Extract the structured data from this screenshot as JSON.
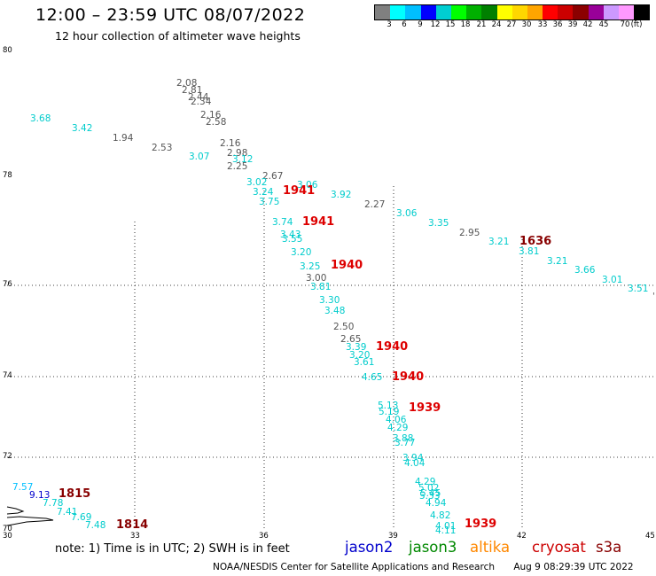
{
  "header": {
    "title": "12:00 – 23:59 UTC 08/07/2022",
    "subtitle": "12 hour collection of altimeter wave heights"
  },
  "legend": {
    "colors": [
      "#808080",
      "#00ffff",
      "#00bfff",
      "#0000ff",
      "#00ced1",
      "#00ff00",
      "#00b000",
      "#008000",
      "#ffff00",
      "#ffd700",
      "#ffa500",
      "#ff0000",
      "#cc0000",
      "#8b0000",
      "#990099",
      "#cc99ff",
      "#ff99ff",
      "#000000"
    ],
    "ticks": [
      "3",
      "6",
      "9",
      "12",
      "15",
      "18",
      "21",
      "24",
      "27",
      "30",
      "33",
      "36",
      "39",
      "42",
      "45",
      "70"
    ],
    "unit": "(ft)"
  },
  "axes": {
    "lat_labels": [
      "80",
      "78",
      "76",
      "74",
      "72",
      "70"
    ],
    "lon_labels": [
      "30",
      "33",
      "36",
      "39",
      "42",
      "45"
    ]
  },
  "map": {
    "waves": [
      {
        "text": "2.08",
        "color": "#555555"
      },
      {
        "text": "2.81",
        "color": "#555555"
      },
      {
        "text": "2.44",
        "color": "#555555"
      },
      {
        "text": "2.34",
        "color": "#555555"
      },
      {
        "text": "2.16",
        "color": "#555555"
      },
      {
        "text": "2.58",
        "color": "#555555"
      },
      {
        "text": "3.68",
        "color": "#00cccc"
      },
      {
        "text": "3.42",
        "color": "#00cccc"
      },
      {
        "text": "1.94",
        "color": "#555555"
      },
      {
        "text": "2.53",
        "color": "#555555"
      },
      {
        "text": "2.16",
        "color": "#555555"
      },
      {
        "text": "2.98",
        "color": "#555555"
      },
      {
        "text": "3.07",
        "color": "#00cccc"
      },
      {
        "text": "3.12",
        "color": "#00cccc"
      },
      {
        "text": "2.25",
        "color": "#555555"
      },
      {
        "text": "2.67",
        "color": "#555555"
      },
      {
        "text": "3.02",
        "color": "#00cccc"
      },
      {
        "text": "3.06",
        "color": "#00cccc"
      },
      {
        "text": "3.24",
        "color": "#00cccc"
      },
      {
        "text": "3.92",
        "color": "#00cccc"
      },
      {
        "text": "3.75",
        "color": "#00cccc"
      },
      {
        "text": "2.27",
        "color": "#555555"
      },
      {
        "text": "3.06",
        "color": "#00cccc"
      },
      {
        "text": "3.74",
        "color": "#00cccc"
      },
      {
        "text": "3.35",
        "color": "#00cccc"
      },
      {
        "text": "3.43",
        "color": "#00cccc"
      },
      {
        "text": "3.55",
        "color": "#00cccc"
      },
      {
        "text": "2.95",
        "color": "#555555"
      },
      {
        "text": "3.21",
        "color": "#00cccc"
      },
      {
        "text": "3.81",
        "color": "#00cccc"
      },
      {
        "text": "3.20",
        "color": "#00cccc"
      },
      {
        "text": "3.21",
        "color": "#00cccc"
      },
      {
        "text": "3.66",
        "color": "#00cccc"
      },
      {
        "text": "3.25",
        "color": "#00cccc"
      },
      {
        "text": "3.01",
        "color": "#00cccc"
      },
      {
        "text": "3.00",
        "color": "#555555"
      },
      {
        "text": "3.51",
        "color": "#00cccc"
      },
      {
        "text": "3.81",
        "color": "#00cccc"
      },
      {
        "text": "3.30",
        "color": "#00cccc"
      },
      {
        "text": "3.48",
        "color": "#00cccc"
      },
      {
        "text": "2.50",
        "color": "#555555"
      },
      {
        "text": "2.65",
        "color": "#555555"
      },
      {
        "text": "3.39",
        "color": "#00cccc"
      },
      {
        "text": "3.20",
        "color": "#00cccc"
      },
      {
        "text": "3.61",
        "color": "#00cccc"
      },
      {
        "text": "4.65",
        "color": "#00cccc"
      },
      {
        "text": "5.13",
        "color": "#00cccc"
      },
      {
        "text": "5.19",
        "color": "#00cccc"
      },
      {
        "text": "4.06",
        "color": "#00cccc"
      },
      {
        "text": "4.29",
        "color": "#00cccc"
      },
      {
        "text": "3.88",
        "color": "#00cccc"
      },
      {
        "text": "3.77",
        "color": "#00cccc"
      },
      {
        "text": "3.94",
        "color": "#00cccc"
      },
      {
        "text": "4.04",
        "color": "#00cccc"
      },
      {
        "text": "4.29",
        "color": "#00cccc"
      },
      {
        "text": "5.02",
        "color": "#00cccc"
      },
      {
        "text": "5.45",
        "color": "#00cccc"
      },
      {
        "text": "5.33",
        "color": "#00cccc"
      },
      {
        "text": "4.94",
        "color": "#00cccc"
      },
      {
        "text": "4.82",
        "color": "#00cccc"
      },
      {
        "text": "4.01",
        "color": "#00cccc"
      },
      {
        "text": "4.11",
        "color": "#00cccc"
      },
      {
        "text": "7.57",
        "color": "#00bfff"
      },
      {
        "text": "9.13",
        "color": "#0000cc"
      },
      {
        "text": "7.78",
        "color": "#00cccc"
      },
      {
        "text": "7.41",
        "color": "#00cccc"
      },
      {
        "text": "7.69",
        "color": "#00cccc"
      },
      {
        "text": "7.48",
        "color": "#00cccc"
      }
    ],
    "times": [
      {
        "text": "1941",
        "color": "#dd0000"
      },
      {
        "text": "1941",
        "color": "#dd0000"
      },
      {
        "text": "1940",
        "color": "#dd0000"
      },
      {
        "text": "1636",
        "color": "#880000"
      },
      {
        "text": "1940",
        "color": "#dd0000"
      },
      {
        "text": "1940",
        "color": "#dd0000"
      },
      {
        "text": "1939",
        "color": "#dd0000"
      },
      {
        "text": "1939",
        "color": "#dd0000"
      },
      {
        "text": "1815",
        "color": "#880000"
      },
      {
        "text": "1814",
        "color": "#880000"
      }
    ]
  },
  "footer": {
    "note": "note: 1) Time is in UTC; 2) SWH is in feet",
    "satellites": [
      {
        "name": "jason2",
        "color": "#0000cc"
      },
      {
        "name": "jason3",
        "color": "#008800"
      },
      {
        "name": "altika",
        "color": "#ff8800"
      },
      {
        "name": "cryosat",
        "color": "#cc0000"
      },
      {
        "name": "s3a",
        "color": "#880000"
      }
    ],
    "credit": "NOAA/NESDIS Center for Satellite Applications and Research",
    "timestamp": "Aug  9 08:29:39 UTC 2022"
  }
}
